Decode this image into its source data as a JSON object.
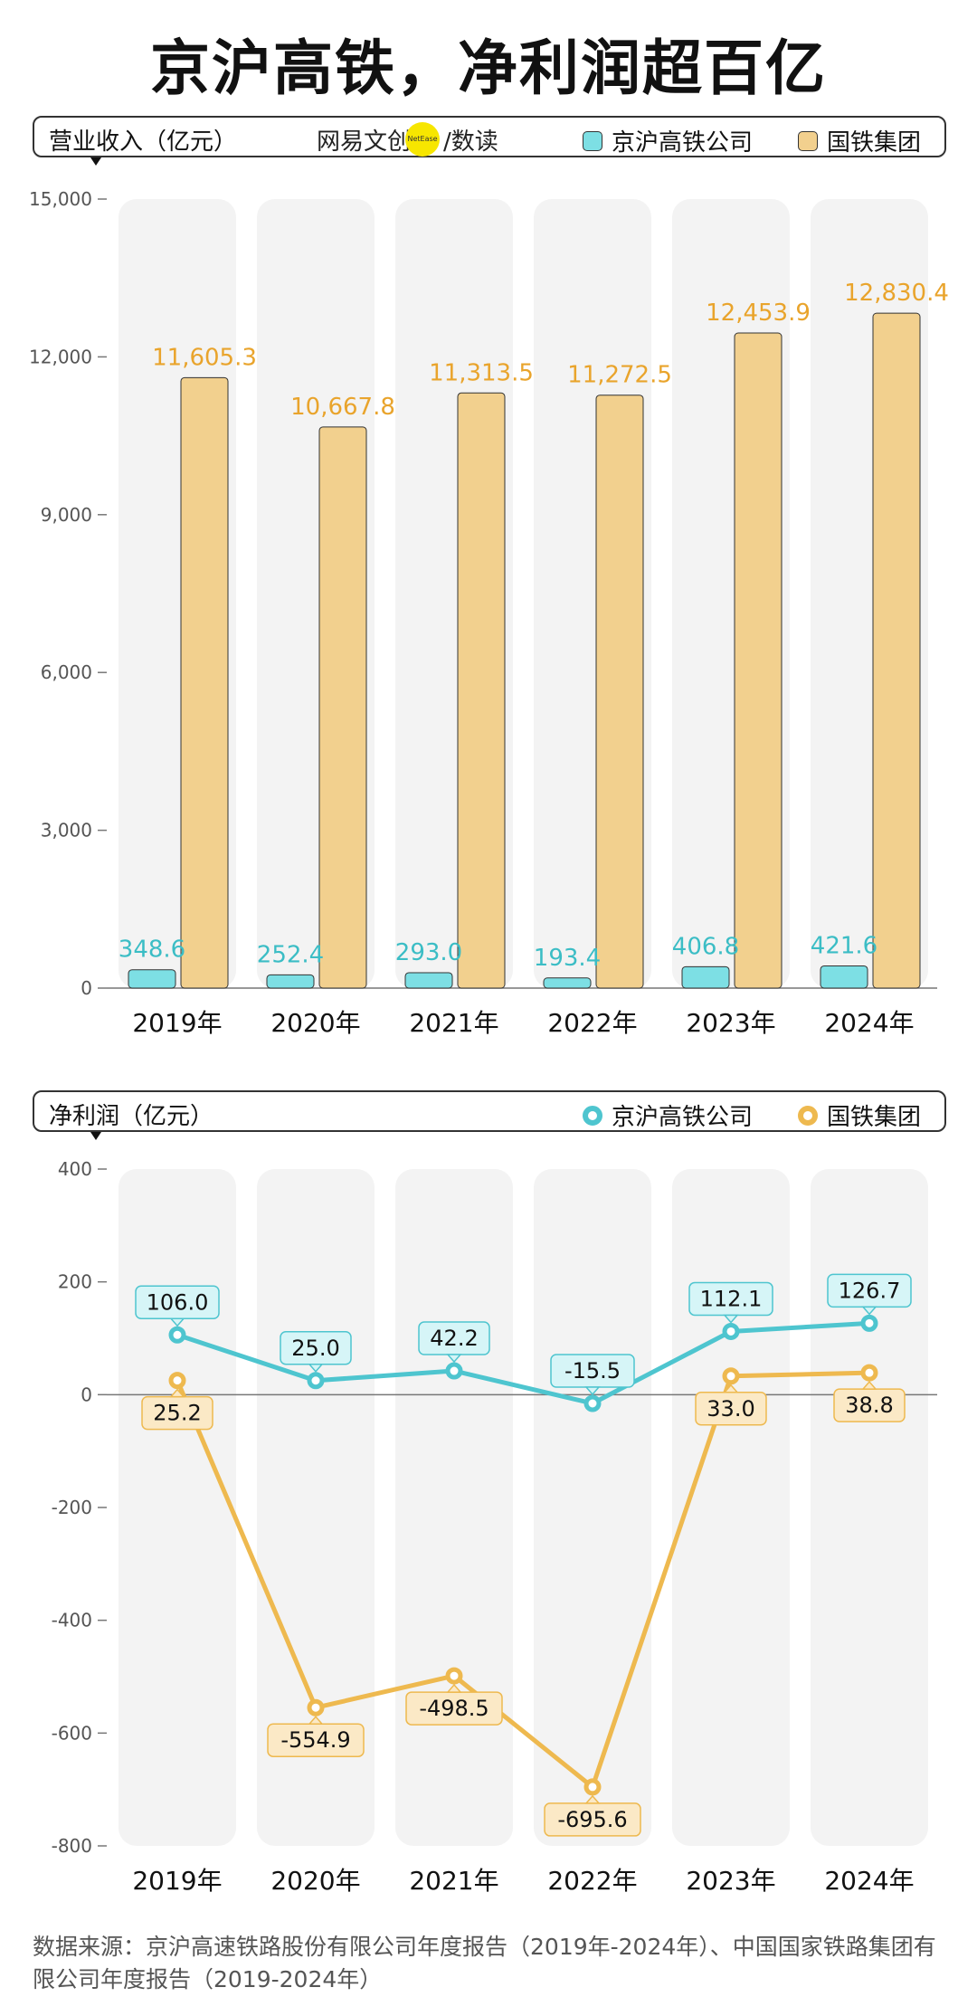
{
  "title": "京沪高铁，净利润超百亿",
  "brand": {
    "part1": "网易",
    "part2": "文创",
    "dot_text": "NetEase",
    "part3": "/数读"
  },
  "colors": {
    "teal": "#4ec5cf",
    "teal_fill": "#7ddfe4",
    "teal_label_bg": "#d6f5f7",
    "gold": "#eeb94f",
    "gold_fill": "#f2d08e",
    "gold_label_bg": "#fbe9c6",
    "teal_text": "#3bbdc5",
    "gold_text": "#e9a42c",
    "column_bg": "#f3f3f3"
  },
  "legend": {
    "series1": "京沪高铁公司",
    "series2": "国铁集团"
  },
  "chart_data": [
    {
      "type": "bar",
      "title": "营业收入（亿元）",
      "categories": [
        "2019年",
        "2020年",
        "2021年",
        "2022年",
        "2023年",
        "2024年"
      ],
      "series": [
        {
          "name": "京沪高铁公司",
          "values": [
            348.6,
            252.4,
            293.0,
            193.4,
            406.8,
            421.6
          ],
          "labels": [
            "348.6",
            "252.4",
            "293.0",
            "193.4",
            "406.8",
            "421.6"
          ]
        },
        {
          "name": "国铁集团",
          "values": [
            11605.3,
            10667.8,
            11313.5,
            11272.5,
            12453.9,
            12830.4
          ],
          "labels": [
            "11,605.3",
            "10,667.8",
            "11,313.5",
            "11,272.5",
            "12,453.9",
            "12,830.4"
          ]
        }
      ],
      "ylim": [
        0,
        15000
      ],
      "yticks": [
        0,
        3000,
        6000,
        9000,
        12000,
        15000
      ],
      "ytick_labels": [
        "0",
        "3,000",
        "6,000",
        "9,000",
        "12,000",
        "15,000"
      ]
    },
    {
      "type": "line",
      "title": "净利润（亿元）",
      "categories": [
        "2019年",
        "2020年",
        "2021年",
        "2022年",
        "2023年",
        "2024年"
      ],
      "series": [
        {
          "name": "京沪高铁公司",
          "values": [
            106.0,
            25.0,
            42.2,
            -15.5,
            112.1,
            126.7
          ],
          "labels": [
            "106.0",
            "25.0",
            "42.2",
            "-15.5",
            "112.1",
            "126.7"
          ]
        },
        {
          "name": "国铁集团",
          "values": [
            25.2,
            -554.9,
            -498.5,
            -695.6,
            33.0,
            38.8
          ],
          "labels": [
            "25.2",
            "-554.9",
            "-498.5",
            "-695.6",
            "33.0",
            "38.8"
          ]
        }
      ],
      "ylim": [
        -800,
        400
      ],
      "yticks": [
        -800,
        -600,
        -400,
        -200,
        0,
        200,
        400
      ],
      "ytick_labels": [
        "-800",
        "-600",
        "-400",
        "-200",
        "0",
        "200",
        "400"
      ]
    }
  ],
  "source": "数据来源：京沪高速铁路股份有限公司年度报告（2019年-2024年）、中国国家铁路集团有限公司年度报告（2019-2024年）"
}
